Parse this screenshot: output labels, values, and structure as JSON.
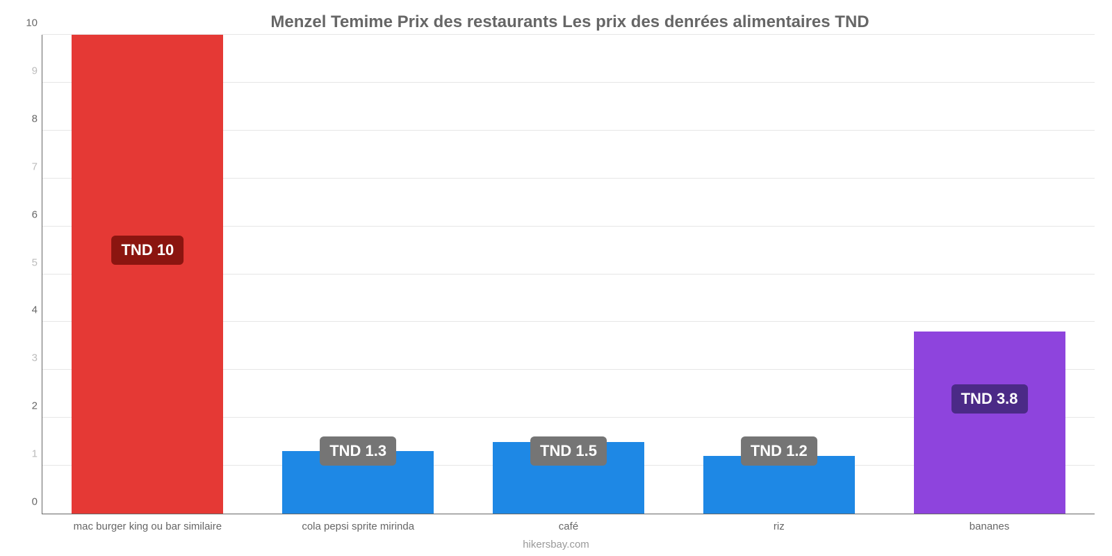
{
  "chart": {
    "type": "bar",
    "title": "Menzel Temime Prix des restaurants Les prix des denrées alimentaires TND",
    "title_fontsize": 24,
    "title_color": "#666666",
    "background_color": "#ffffff",
    "axis_color": "#666666",
    "grid_color": "#e6e6e6",
    "label_color": "#666666",
    "label_fontsize": 15,
    "ylim": [
      0,
      10
    ],
    "yticks": [
      0,
      1,
      2,
      3,
      4,
      5,
      6,
      7,
      8,
      9,
      10
    ],
    "yticks_dim": [
      1,
      3,
      5,
      7,
      9
    ],
    "bar_width_pct": 72,
    "source": "hikersbay.com",
    "categories": [
      "mac burger king ou bar similaire",
      "cola pepsi sprite mirinda",
      "café",
      "riz",
      "bananes"
    ],
    "values": [
      10,
      1.3,
      1.5,
      1.2,
      3.8
    ],
    "value_labels": [
      "TND 10",
      "TND 1.3",
      "TND 1.5",
      "TND 1.2",
      "TND 3.8"
    ],
    "bar_colors": [
      "#e53935",
      "#1e88e5",
      "#1e88e5",
      "#1e88e5",
      "#8e44dd"
    ],
    "badge_colors": [
      "#8b1510",
      "#757575",
      "#757575",
      "#757575",
      "#4b2a87"
    ],
    "badge_top_value": [
      5.5,
      1.3,
      1.3,
      1.3,
      2.4
    ],
    "badge_fontsize": 22
  }
}
